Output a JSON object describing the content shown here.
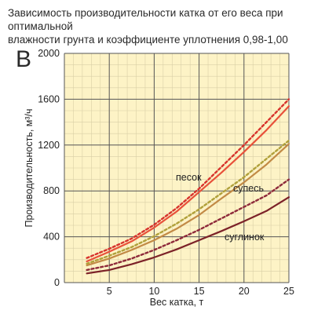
{
  "title_line1": "Зависимость производительности катка от его веса при оптимальной",
  "title_line2": "влажности грунта и коэффициенте уплотнения 0,98-1,00",
  "panel_letter": "B",
  "colors": {
    "plot_bg": "#fdf3c6",
    "grid_major": "#555555",
    "grid_minor": "#d9cfa6",
    "pesok_solid": "#e8513a",
    "pesok_dashed": "#d7322c",
    "supes_solid": "#c28a45",
    "supes_dashed": "#b0a03a",
    "suglinok_solid": "#7c2228",
    "suglinok_dashed": "#8e2a3a"
  },
  "chart_data": {
    "type": "line",
    "title": "Зависимость производительности катка от его веса при оптимальной влажности грунта и коэффициенте уплотнения 0,98-1,00",
    "xlabel": "Вес катка, т",
    "ylabel": "Производительность, м³/ч",
    "xlim": [
      0,
      25
    ],
    "ylim": [
      0,
      2000
    ],
    "x_ticks": [
      "5",
      "10",
      "15",
      "20",
      "25"
    ],
    "y_ticks": [
      "0",
      "400",
      "800",
      "1200",
      "1600",
      "2000"
    ],
    "grid": true,
    "series": [
      {
        "name": "песок",
        "style": "solid",
        "x": [
          2.5,
          5,
          7.5,
          10,
          12.5,
          15,
          17.5,
          20,
          22.5,
          25
        ],
        "y": [
          185,
          270,
          360,
          480,
          620,
          790,
          960,
          1140,
          1330,
          1540
        ]
      },
      {
        "name": "песок",
        "style": "dashed",
        "x": [
          2.5,
          5,
          7.5,
          10,
          12.5,
          15,
          17.5,
          20,
          22.5,
          25
        ],
        "y": [
          215,
          295,
          385,
          505,
          650,
          820,
          1010,
          1200,
          1400,
          1600
        ]
      },
      {
        "name": "супесь",
        "style": "solid",
        "x": [
          2.5,
          5,
          7.5,
          10,
          12.5,
          15,
          17.5,
          20,
          22.5,
          25
        ],
        "y": [
          150,
          210,
          285,
          370,
          470,
          590,
          735,
          875,
          1030,
          1210
        ]
      },
      {
        "name": "супесь",
        "style": "dashed",
        "x": [
          2.5,
          5,
          7.5,
          10,
          12.5,
          15,
          17.5,
          20,
          22.5,
          25
        ],
        "y": [
          165,
          235,
          310,
          405,
          515,
          640,
          780,
          920,
          1080,
          1240
        ]
      },
      {
        "name": "суглинок",
        "style": "solid",
        "x": [
          2.5,
          5,
          7.5,
          10,
          12.5,
          15,
          17.5,
          20,
          22.5,
          25
        ],
        "y": [
          80,
          110,
          160,
          220,
          290,
          370,
          450,
          535,
          625,
          745
        ]
      },
      {
        "name": "суглинок",
        "style": "dashed",
        "x": [
          2.5,
          5,
          7.5,
          10,
          12.5,
          15,
          17.5,
          20,
          22.5,
          25
        ],
        "y": [
          110,
          150,
          210,
          285,
          370,
          460,
          560,
          660,
          760,
          900
        ]
      }
    ],
    "annotations": [
      "песок",
      "супесь",
      "суглинок"
    ]
  }
}
